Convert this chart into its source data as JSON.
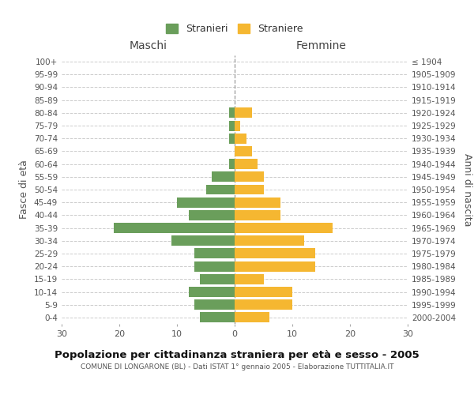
{
  "age_groups": [
    "100+",
    "95-99",
    "90-94",
    "85-89",
    "80-84",
    "75-79",
    "70-74",
    "65-69",
    "60-64",
    "55-59",
    "50-54",
    "45-49",
    "40-44",
    "35-39",
    "30-34",
    "25-29",
    "20-24",
    "15-19",
    "10-14",
    "5-9",
    "0-4"
  ],
  "birth_years": [
    "≤ 1904",
    "1905-1909",
    "1910-1914",
    "1915-1919",
    "1920-1924",
    "1925-1929",
    "1930-1934",
    "1935-1939",
    "1940-1944",
    "1945-1949",
    "1950-1954",
    "1955-1959",
    "1960-1964",
    "1965-1969",
    "1970-1974",
    "1975-1979",
    "1980-1984",
    "1985-1989",
    "1990-1994",
    "1995-1999",
    "2000-2004"
  ],
  "males": [
    0,
    0,
    0,
    0,
    1,
    1,
    1,
    0,
    1,
    4,
    5,
    10,
    8,
    21,
    11,
    7,
    7,
    6,
    8,
    7,
    6
  ],
  "females": [
    0,
    0,
    0,
    0,
    3,
    1,
    2,
    3,
    4,
    5,
    5,
    8,
    8,
    17,
    12,
    14,
    14,
    5,
    10,
    10,
    6
  ],
  "male_color": "#6a9e5b",
  "female_color": "#f5b731",
  "grid_color": "#cccccc",
  "title": "Popolazione per cittadinanza straniera per età e sesso - 2005",
  "subtitle": "COMUNE DI LONGARONE (BL) - Dati ISTAT 1° gennaio 2005 - Elaborazione TUTTITALIA.IT",
  "xlabel_left": "Maschi",
  "xlabel_right": "Femmine",
  "ylabel_left": "Fasce di età",
  "ylabel_right": "Anni di nascita",
  "xlim": 30,
  "legend_males": "Stranieri",
  "legend_females": "Straniere",
  "bg_color": "#ffffff",
  "bar_height": 0.8
}
